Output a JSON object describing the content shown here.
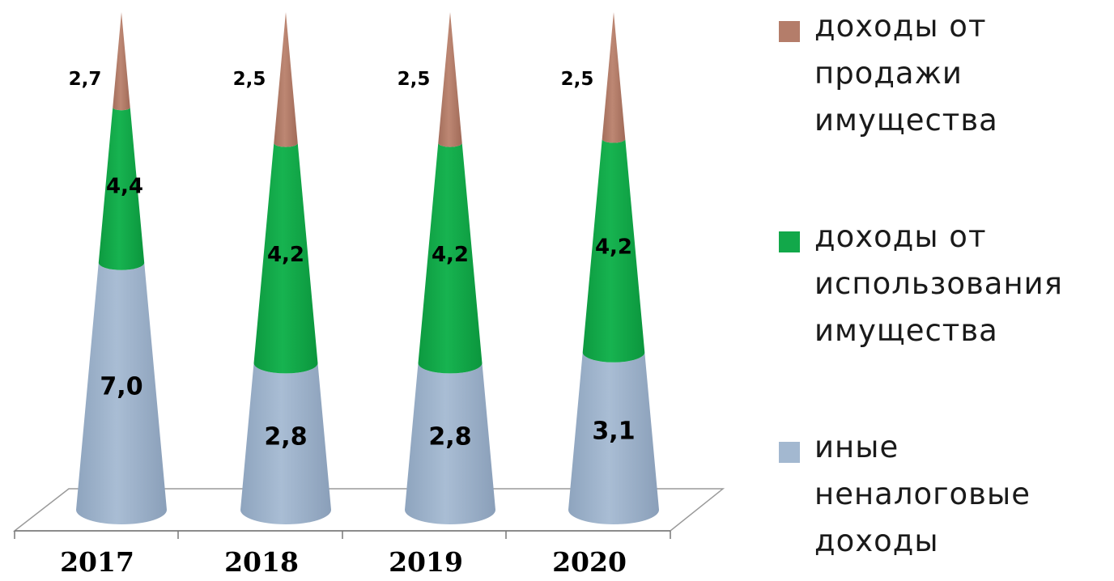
{
  "chart_data": {
    "type": "bar",
    "subtype": "stacked-cone-3d",
    "title": "",
    "xlabel": "",
    "ylabel": "",
    "categories": [
      "2017",
      "2018",
      "2019",
      "2020"
    ],
    "series": [
      {
        "name": "иные неналоговые доходы",
        "color": "#a3b8d0",
        "values": [
          7.0,
          2.8,
          2.8,
          3.1
        ],
        "labels": [
          "7,0",
          "2,8",
          "2,8",
          "3,1"
        ]
      },
      {
        "name": "доходы от использования имущества",
        "color": "#12a84a",
        "values": [
          4.4,
          4.2,
          4.2,
          4.2
        ],
        "labels": [
          "4,4",
          "4,2",
          "4,2",
          "4,2"
        ]
      },
      {
        "name": "доходы от продажи имущества",
        "color": "#b47d6a",
        "values": [
          2.7,
          2.5,
          2.5,
          2.5
        ],
        "labels": [
          "2,7",
          "2,5",
          "2,5",
          "2,5"
        ]
      }
    ],
    "legend": {
      "position": "right",
      "items": [
        {
          "label": "доходы от продажи имущества",
          "lines": [
            "доходы от",
            "продажи",
            "имущества"
          ],
          "color": "#b47d6a"
        },
        {
          "label": "доходы от использования имущества",
          "lines": [
            "доходы от",
            "использования",
            "имущества"
          ],
          "color": "#12a84a"
        },
        {
          "label": "иные неналоговые доходы",
          "lines": [
            "иные неналоговые",
            "доходы"
          ],
          "color": "#a3b8d0"
        }
      ]
    },
    "grid": false,
    "normalized": true
  }
}
